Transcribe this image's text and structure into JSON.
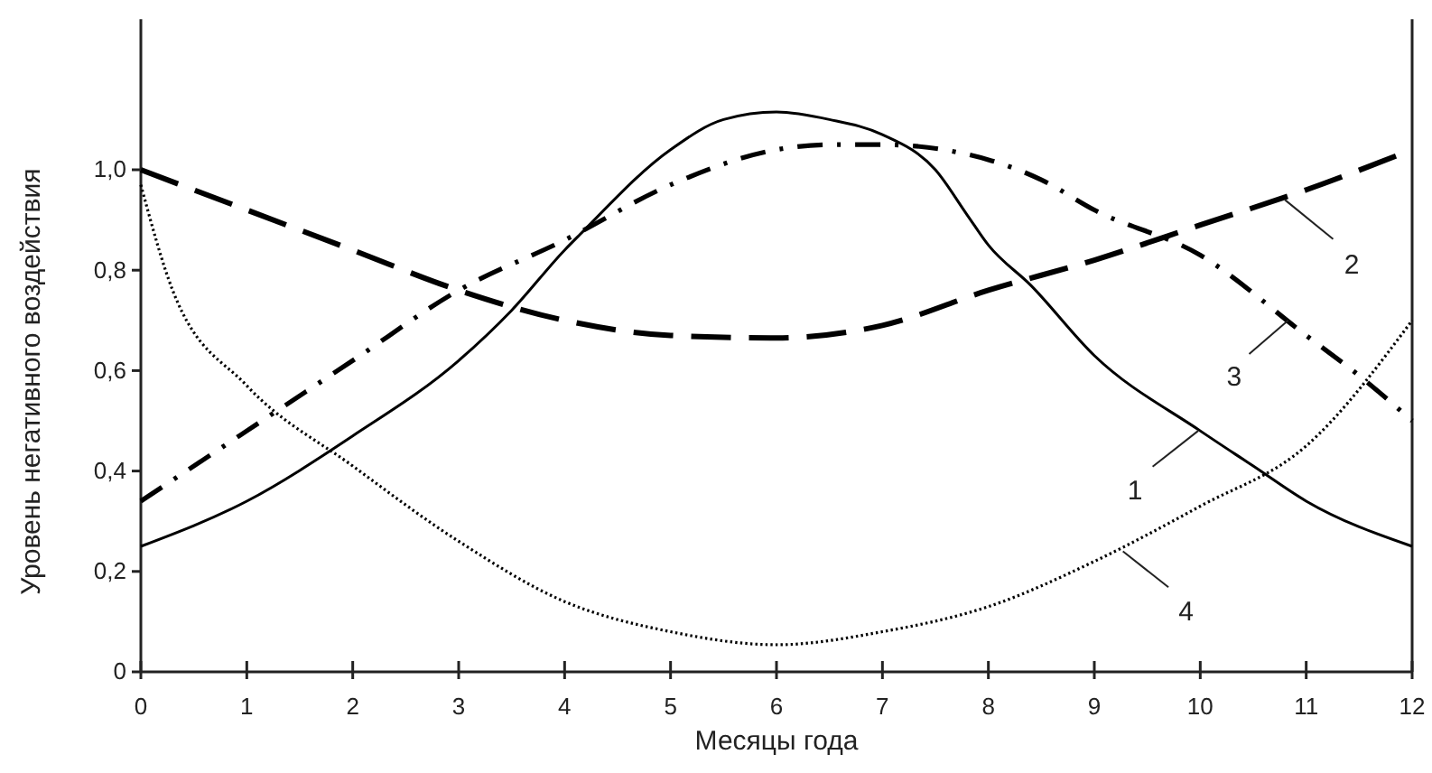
{
  "chart_data": {
    "type": "line",
    "xlabel": "Месяцы года",
    "ylabel": "Уровень негативного воздействия",
    "xlim": [
      0,
      12
    ],
    "ylim": [
      0,
      1.3
    ],
    "xticks": [
      0,
      1,
      2,
      3,
      4,
      5,
      6,
      7,
      8,
      9,
      10,
      11,
      12
    ],
    "yticks": [
      0,
      {
        "value": 0.2,
        "label": "0,2"
      },
      {
        "value": 0.4,
        "label": "0,4"
      },
      {
        "value": 0.6,
        "label": "0,6"
      },
      {
        "value": 0.8,
        "label": "0,8"
      },
      {
        "value": 1.0,
        "label": "1,0"
      }
    ],
    "grid": false,
    "marker": "none",
    "series": [
      {
        "color": "#000000",
        "line_style": "solid",
        "x": [
          0,
          1,
          2,
          3,
          3.5,
          4,
          4.14,
          5,
          5.5,
          6,
          6.5,
          7,
          7.5,
          7.8,
          8,
          8.4,
          9,
          10,
          10.5,
          11,
          12
        ],
        "values": [
          0.25,
          0.34,
          0.47,
          0.62,
          0.72,
          0.84,
          0.87,
          1.04,
          1.1,
          1.115,
          1.1,
          1.07,
          1.0,
          0.91,
          0.85,
          0.77,
          0.63,
          0.48,
          0.41,
          0.34,
          0.25
        ]
      },
      {
        "color": "#000000",
        "line_style": "dashed",
        "x": [
          0,
          1,
          2,
          3,
          4,
          5,
          6,
          7,
          8,
          9,
          10,
          11,
          12
        ],
        "values": [
          1.0,
          0.92,
          0.84,
          0.76,
          0.7,
          0.67,
          0.665,
          0.69,
          0.76,
          0.82,
          0.89,
          0.96,
          1.04
        ]
      },
      {
        "color": "#000000",
        "line_style": "dashdot",
        "x": [
          0,
          1,
          2,
          3,
          4,
          5,
          6,
          6.5,
          7,
          8,
          8.5,
          9,
          10,
          11,
          11.5,
          12
        ],
        "values": [
          0.34,
          0.48,
          0.62,
          0.76,
          0.86,
          0.97,
          1.04,
          1.05,
          1.05,
          1.02,
          0.98,
          0.92,
          0.83,
          0.67,
          0.59,
          0.5
        ]
      },
      {
        "color": "#000000",
        "line_style": "dotted",
        "x": [
          0,
          0.3,
          1,
          2,
          3,
          4,
          5,
          6,
          7,
          8,
          9,
          10,
          11,
          12
        ],
        "values": [
          0.97,
          0.76,
          0.57,
          0.41,
          0.26,
          0.14,
          0.08,
          0.054,
          0.08,
          0.13,
          0.22,
          0.33,
          0.45,
          0.7
        ]
      }
    ],
    "annotations": [
      {
        "text": "1",
        "x": 9.98,
        "y": 0.48
      },
      {
        "text": "2",
        "x": 10.8,
        "y": 0.94
      },
      {
        "text": "3",
        "x": 10.83,
        "y": 0.7
      },
      {
        "text": "4",
        "x": 9.27,
        "y": 0.24
      }
    ]
  }
}
